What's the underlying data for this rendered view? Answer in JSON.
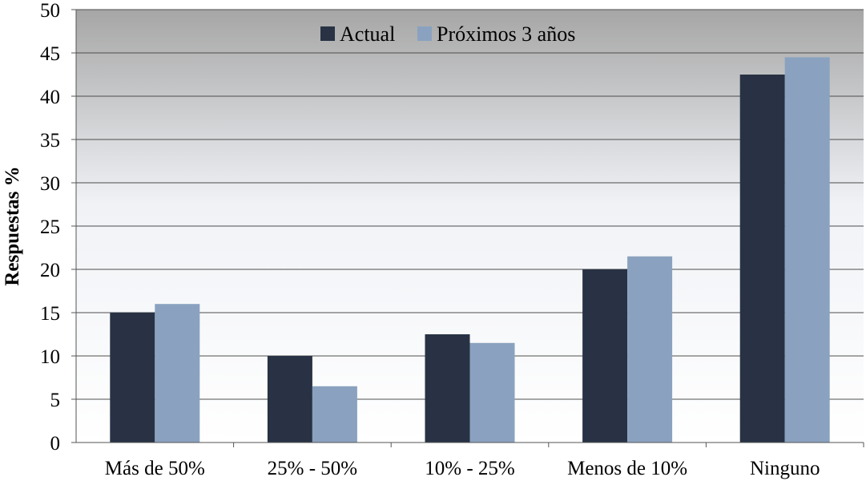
{
  "chart_data": {
    "type": "bar",
    "categories": [
      "Más de 50%",
      "25% - 50%",
      "10% - 25%",
      "Menos de 10%",
      "Ninguno"
    ],
    "series": [
      {
        "name": "Actual",
        "values": [
          15,
          10,
          12.5,
          20,
          42.5
        ]
      },
      {
        "name": "Próximos 3 años",
        "values": [
          16,
          6.5,
          11.5,
          21.5,
          44.5
        ]
      }
    ],
    "title": "",
    "xlabel": "",
    "ylabel": "Respuestas %",
    "ylim": [
      0,
      50
    ],
    "yticks": [
      0,
      5,
      10,
      15,
      20,
      25,
      30,
      35,
      40,
      45,
      50
    ],
    "grid": true,
    "legend_position": "top-center"
  },
  "colors": {
    "Actual": "#283244",
    "Próximos 3 años": "#8aa2bf",
    "plot_top": "#a6a6a6",
    "plot_bottom": "#ffffff",
    "grid": "#4d4d4d"
  }
}
